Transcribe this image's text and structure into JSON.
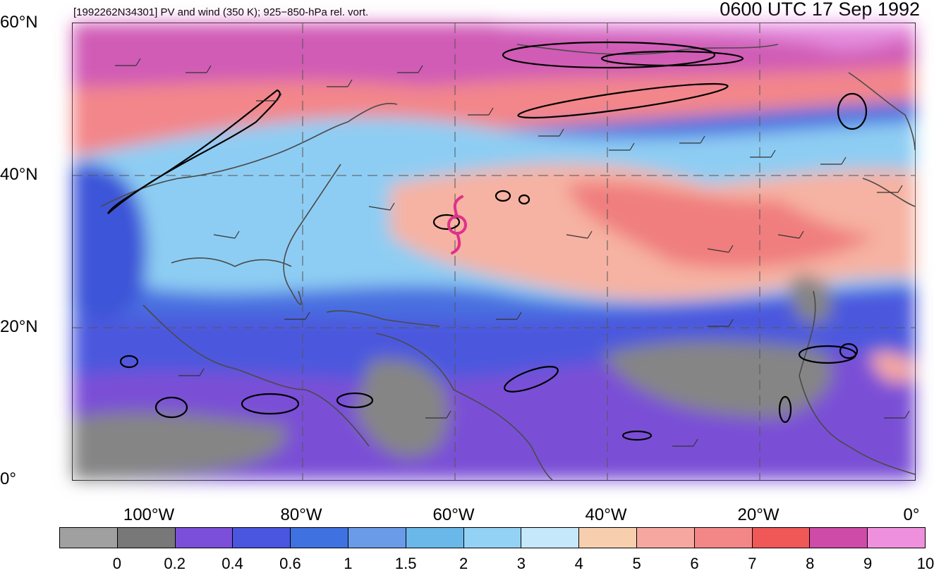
{
  "title": {
    "left": "[1992262N34301] PV and wind (350 K); 925−850-hPa rel. vort.",
    "right": "0600 UTC 17 Sep 1992"
  },
  "map": {
    "lat_labels": [
      "60°N",
      "40°N",
      "20°N",
      "0°"
    ],
    "lon_labels": [
      "100°W",
      "80°W",
      "60°W",
      "40°W",
      "20°W",
      "0°"
    ],
    "storm_marker": {
      "symbol": "tropical-cyclone-icon",
      "color": "#e0308a"
    }
  },
  "colorbar": {
    "colors": [
      "#a0a0a0",
      "#787878",
      "#7b4fd9",
      "#4a55e0",
      "#3f72e0",
      "#6a9be8",
      "#6ab8ea",
      "#93d2f4",
      "#c5e8fb",
      "#f8cfae",
      "#f6a8a0",
      "#f38787",
      "#f05858",
      "#cf4ba8",
      "#ef90de"
    ],
    "labels": [
      "0",
      "0.2",
      "0.4",
      "0.6",
      "1",
      "1.5",
      "2",
      "3",
      "4",
      "5",
      "6",
      "7",
      "8",
      "9",
      "10"
    ]
  }
}
